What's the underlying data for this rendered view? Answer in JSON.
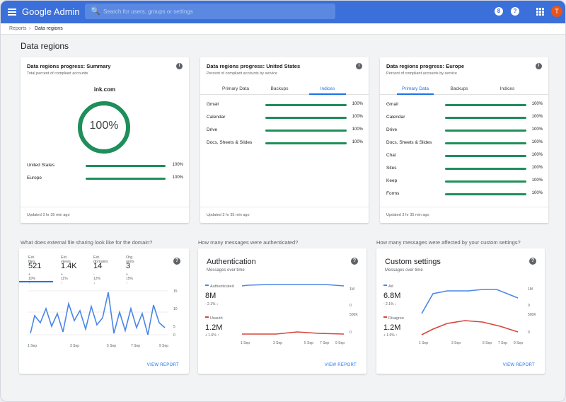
{
  "topbar": {
    "brand": "Google Admin",
    "search_placeholder": "Search for users, groups or settings",
    "avatar_initial": "T",
    "help_glyph": "?",
    "apps_glyph": "8"
  },
  "breadcrumb": {
    "parent": "Reports",
    "sep": "›",
    "current": "Data regions"
  },
  "page_title": "Data regions",
  "summary": {
    "title": "Data regions progress: Summary",
    "subtitle": "Total percent of compliant accounts",
    "domain": "ink.com",
    "ring_value": "100%",
    "rows": [
      {
        "label": "United States",
        "pct": "100%",
        "value": 1.0
      },
      {
        "label": "Europe",
        "pct": "100%",
        "value": 1.0
      }
    ],
    "updated": "Updated 3 hr 35 min ago"
  },
  "us": {
    "title": "Data regions progress: United States",
    "subtitle": "Percent of compliant accounts by service",
    "tabs": [
      "Primary Data",
      "Backups",
      "Indices"
    ],
    "active_tab": 2,
    "rows": [
      {
        "label": "Gmail",
        "pct": "100%",
        "value": 1.0
      },
      {
        "label": "Calendar",
        "pct": "100%",
        "value": 1.0
      },
      {
        "label": "Drive",
        "pct": "100%",
        "value": 1.0
      },
      {
        "label": "Docs, Sheets & Slides",
        "pct": "100%",
        "value": 1.0
      }
    ],
    "updated": "Updated 3 hr 35 min ago"
  },
  "eu": {
    "title": "Data regions progress: Europe",
    "subtitle": "Percent of compliant accounts by service",
    "tabs": [
      "Primary Data",
      "Backups",
      "Indices"
    ],
    "active_tab": 0,
    "rows": [
      {
        "label": "Gmail",
        "pct": "100%",
        "value": 1.0
      },
      {
        "label": "Calendar",
        "pct": "100%",
        "value": 1.0
      },
      {
        "label": "Drive",
        "pct": "100%",
        "value": 1.0
      },
      {
        "label": "Docs, Sheets & Slides",
        "pct": "100%",
        "value": 1.0
      },
      {
        "label": "Chat",
        "pct": "100%",
        "value": 1.0
      },
      {
        "label": "Sites",
        "pct": "100%",
        "value": 1.0
      },
      {
        "label": "Keep",
        "pct": "100%",
        "value": 1.0
      },
      {
        "label": "Forms",
        "pct": "100%",
        "value": 1.0
      }
    ],
    "updated": "Updated 3 hr 35 min ago"
  },
  "questions": [
    "What does external file sharing look like for the domain?",
    "How many messages were authenticated?",
    "How many messages were affected by your custom settings?"
  ],
  "sharing": {
    "metrics": [
      {
        "label": "Ext. files",
        "value": "521",
        "change": "+ 10% ↑"
      },
      {
        "label": "Ext. views",
        "value": "1.4K",
        "change": "+ 11% ↑"
      },
      {
        "label": "Ext. domains",
        "value": "14",
        "change": "- 12% ↓"
      },
      {
        "label": "Org. units",
        "value": "3",
        "change": "+ 15% ↑"
      }
    ],
    "y_ticks": [
      "15",
      "10",
      "5",
      "0"
    ],
    "x_ticks": [
      "1 Sep",
      "3 Sep",
      "5 Sep",
      "7 Sep",
      "9 Sep"
    ],
    "view": "VIEW REPORT"
  },
  "auth": {
    "title": "Authentication",
    "subtitle": "Messages over time",
    "top_label": "Authenticated",
    "top_value": "8M",
    "top_change": "- 2.1% ↓",
    "bot_label": "Unauth",
    "bot_value": "1.2M",
    "bot_change": "+ 1.6% ↑",
    "top_ticks": [
      "1M",
      "0"
    ],
    "bot_ticks": [
      "500K",
      "0"
    ],
    "x_ticks": [
      "1 Sep",
      "3 Sep",
      "5 Sep",
      "7 Sep",
      "9 Sep"
    ],
    "view": "VIEW REPORT"
  },
  "custom": {
    "title": "Custom settings",
    "subtitle": "Messages over time",
    "top_label": "Ad",
    "top_value": "6.8M",
    "top_change": "- 2.1% ↓",
    "bot_label": "Disagree",
    "bot_value": "1.2M",
    "bot_change": "+ 1.6% ↑",
    "top_ticks": [
      "1M",
      "0"
    ],
    "bot_ticks": [
      "500K",
      "0"
    ],
    "x_ticks": [
      "1 Sep",
      "3 Sep",
      "5 Sep",
      "7 Sep",
      "9 Sep"
    ],
    "view": "VIEW REPORT"
  },
  "colors": {
    "blue": "#4a86e8",
    "red": "#d6453b",
    "green": "#1e8e5a",
    "brand": "#3b6fd9"
  }
}
